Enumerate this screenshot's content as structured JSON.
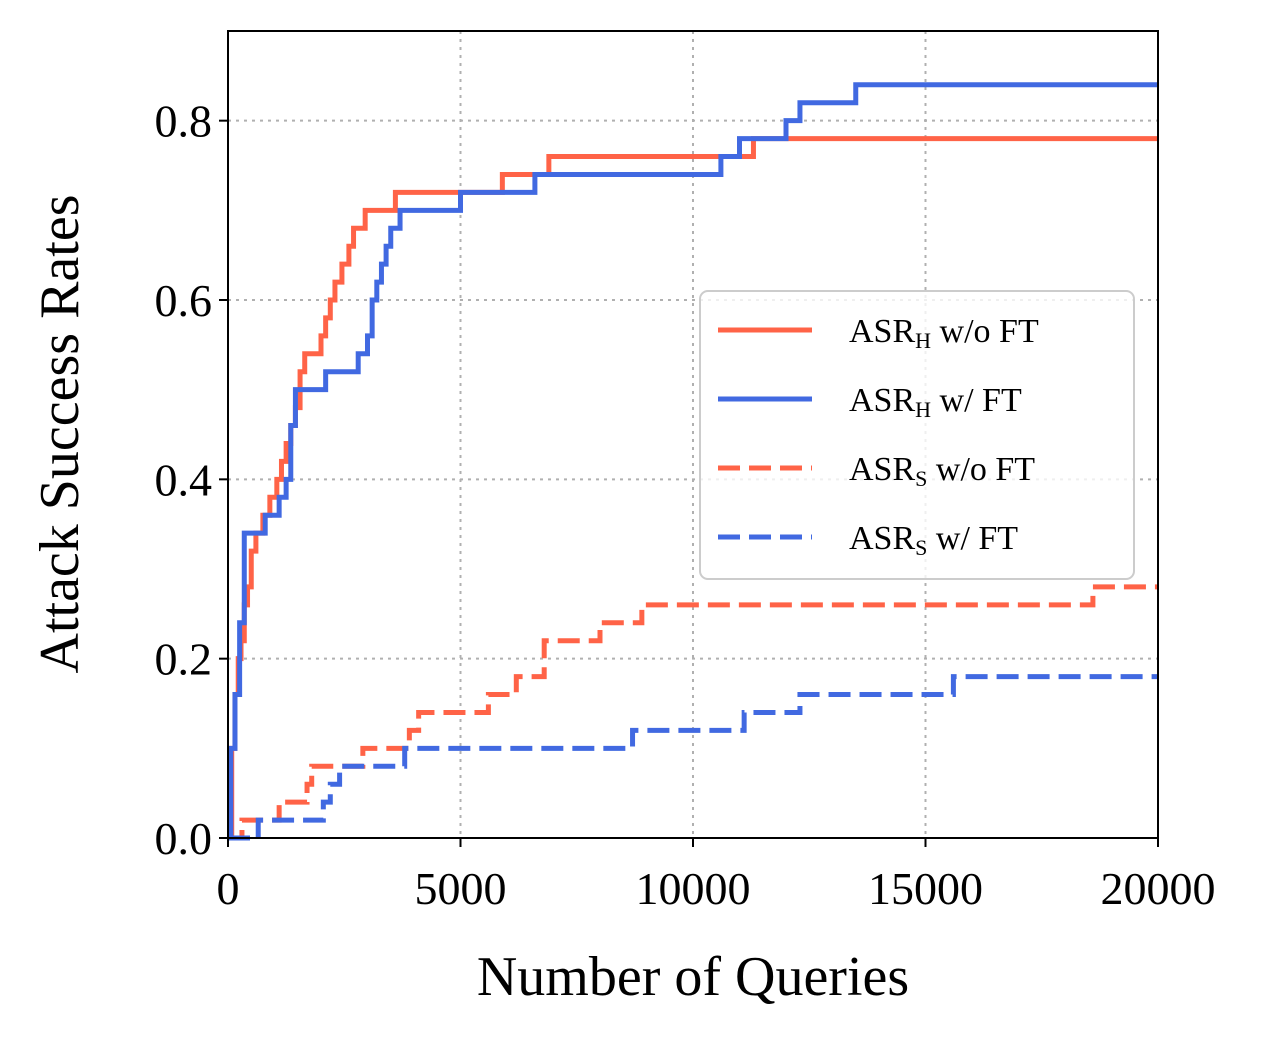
{
  "chart_data": {
    "type": "line",
    "title": "",
    "xlabel": "Number of Queries",
    "ylabel": "Attack Success Rates",
    "xlim": [
      0,
      20000
    ],
    "ylim": [
      0,
      0.9
    ],
    "x_ticks": [
      0,
      5000,
      10000,
      15000,
      20000
    ],
    "x_tick_labels": [
      "0",
      "5000",
      "10000",
      "15000",
      "20000"
    ],
    "y_ticks": [
      0.0,
      0.2,
      0.4,
      0.6,
      0.8
    ],
    "y_tick_labels": [
      "0.0",
      "0.2",
      "0.4",
      "0.6",
      "0.8"
    ],
    "grid": true,
    "legend_position": "center-right",
    "series": [
      {
        "name": "ASR_H w/o FT",
        "legend_main": "ASR",
        "legend_sub": "H",
        "legend_suffix": " w/o FT",
        "color": "#ff6347",
        "style": "solid",
        "x": [
          0,
          80,
          150,
          220,
          280,
          350,
          420,
          500,
          600,
          750,
          900,
          1050,
          1150,
          1250,
          1350,
          1450,
          1550,
          1650,
          1850,
          2000,
          2100,
          2200,
          2300,
          2450,
          2600,
          2700,
          2800,
          2950,
          3300,
          3600,
          5900,
          6900,
          11300,
          20000
        ],
        "values": [
          0,
          0.1,
          0.16,
          0.2,
          0.22,
          0.26,
          0.28,
          0.32,
          0.34,
          0.36,
          0.38,
          0.4,
          0.42,
          0.44,
          0.46,
          0.48,
          0.52,
          0.54,
          0.54,
          0.56,
          0.58,
          0.6,
          0.62,
          0.64,
          0.66,
          0.68,
          0.68,
          0.7,
          0.7,
          0.72,
          0.74,
          0.76,
          0.78,
          0.78
        ]
      },
      {
        "name": "ASR_H w/ FT",
        "legend_main": "ASR",
        "legend_sub": "H",
        "legend_suffix": " w/ FT",
        "color": "#4169e1",
        "style": "solid",
        "x": [
          0,
          60,
          150,
          250,
          350,
          800,
          1100,
          1250,
          1350,
          1450,
          2100,
          2800,
          3000,
          3100,
          3200,
          3300,
          3400,
          3500,
          3700,
          3900,
          4400,
          5000,
          6600,
          10600,
          11000,
          12000,
          12300,
          13500,
          20000
        ],
        "values": [
          0,
          0.1,
          0.16,
          0.24,
          0.34,
          0.36,
          0.38,
          0.4,
          0.46,
          0.5,
          0.52,
          0.54,
          0.56,
          0.6,
          0.62,
          0.64,
          0.66,
          0.68,
          0.7,
          0.7,
          0.7,
          0.72,
          0.74,
          0.76,
          0.78,
          0.8,
          0.82,
          0.84,
          0.84
        ]
      },
      {
        "name": "ASR_S w/o FT",
        "legend_main": "ASR",
        "legend_sub": "S",
        "legend_suffix": " w/o FT",
        "color": "#ff6347",
        "style": "dashed",
        "x": [
          0,
          300,
          1100,
          1700,
          1800,
          2400,
          2900,
          3300,
          3900,
          4100,
          4200,
          4800,
          5600,
          6200,
          6800,
          7400,
          8000,
          8900,
          9200,
          18600,
          20000
        ],
        "values": [
          0,
          0.02,
          0.04,
          0.06,
          0.08,
          0.08,
          0.1,
          0.1,
          0.12,
          0.14,
          0.14,
          0.14,
          0.16,
          0.18,
          0.22,
          0.22,
          0.24,
          0.26,
          0.26,
          0.28,
          0.28
        ]
      },
      {
        "name": "ASR_S w/ FT",
        "legend_main": "ASR",
        "legend_sub": "S",
        "legend_suffix": " w/ FT",
        "color": "#4169e1",
        "style": "dashed",
        "x": [
          0,
          650,
          2050,
          2200,
          2400,
          2800,
          3300,
          3800,
          8700,
          11100,
          12300,
          15600,
          20000
        ],
        "values": [
          0,
          0.02,
          0.04,
          0.06,
          0.08,
          0.08,
          0.08,
          0.1,
          0.12,
          0.14,
          0.16,
          0.18,
          0.18
        ]
      }
    ]
  }
}
